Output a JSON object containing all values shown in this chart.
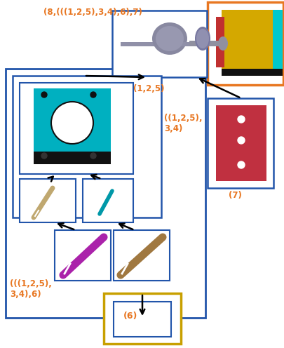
{
  "title_label": "(8,(((1,2,5),3,4),6),7)",
  "label_125": "(1,2,5)",
  "label_1254": "((1,2,5),\n3,4)",
  "label_12546": "(((1,2,5),\n3,4),6)",
  "label_7": "(7)",
  "label_6": "(6)",
  "orange": "#E87722",
  "blue": "#2255AA",
  "yellow": "#C8A000",
  "bg": "#FFFFFF",
  "figsize": [
    4.06,
    4.96
  ],
  "dpi": 100
}
